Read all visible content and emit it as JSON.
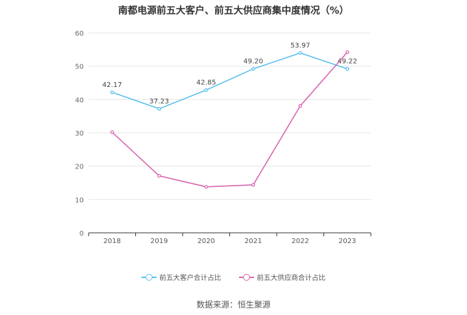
{
  "title": "南都电源前五大客户、前五大供应商集中度情况（%）",
  "source": "数据来源：恒生聚源",
  "chart_data": {
    "type": "line",
    "title": "南都电源前五大客户、前五大供应商集中度情况（%）",
    "categories": [
      "2018",
      "2019",
      "2020",
      "2021",
      "2022",
      "2023"
    ],
    "ylim": [
      0,
      60
    ],
    "yticks": [
      0,
      10,
      20,
      30,
      40,
      50,
      60
    ],
    "grid": true,
    "legend_position": "bottom",
    "series": [
      {
        "name": "前五大客户合计占比",
        "color": "#5bc0eb",
        "values": [
          42.17,
          37.23,
          42.85,
          49.2,
          53.97,
          49.22
        ],
        "labels": [
          "42.17",
          "37.23",
          "42.85",
          "49.20",
          "53.97",
          "49.22"
        ]
      },
      {
        "name": "前五大供应商合计占比",
        "color": "#d966b0",
        "values": [
          30.2,
          17.1,
          13.8,
          14.4,
          38.1,
          54.2
        ]
      }
    ]
  }
}
